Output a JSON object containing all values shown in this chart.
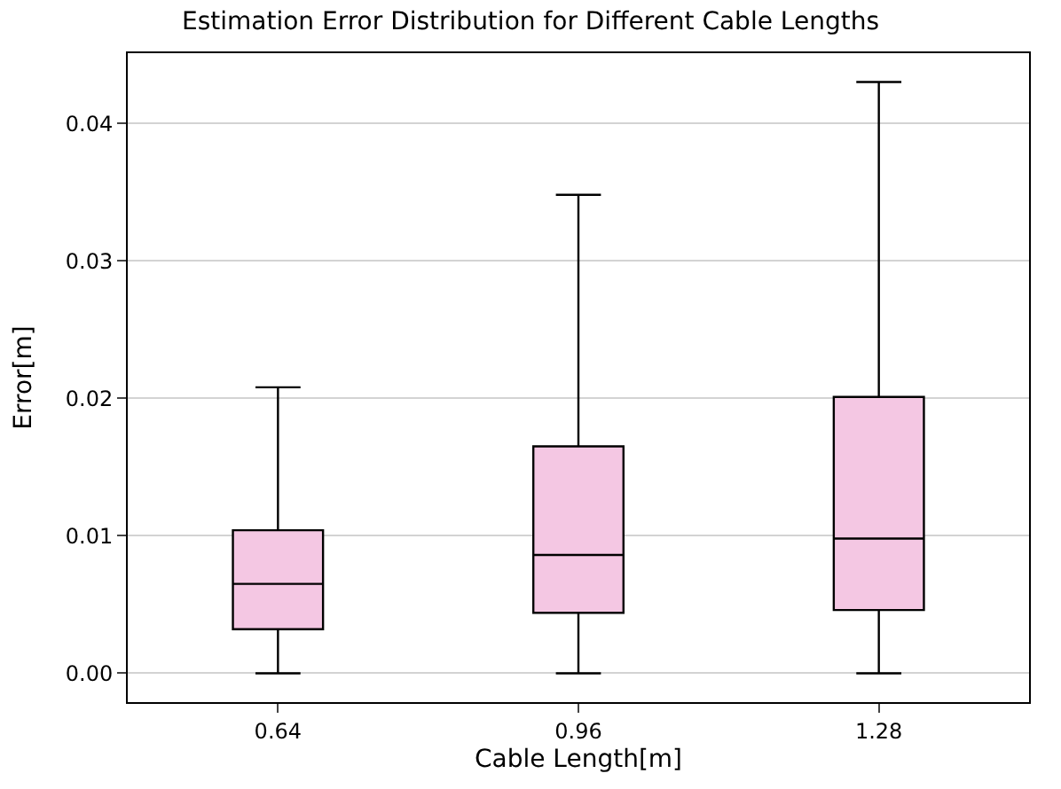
{
  "chart_data": {
    "type": "box",
    "title": "Estimation Error Distribution for Different Cable Lengths",
    "xlabel": "Cable Length[m]",
    "ylabel": "Error[m]",
    "categories": [
      "0.64",
      "0.96",
      "1.28"
    ],
    "boxes": [
      {
        "low": 0.0,
        "q1": 0.0032,
        "median": 0.0065,
        "q3": 0.0104,
        "high": 0.0208
      },
      {
        "low": 0.0,
        "q1": 0.0044,
        "median": 0.0086,
        "q3": 0.0165,
        "high": 0.0348
      },
      {
        "low": 0.0,
        "q1": 0.0046,
        "median": 0.0098,
        "q3": 0.0201,
        "high": 0.043
      }
    ],
    "color": "#f4c7e3",
    "ylim": [
      -0.0021,
      0.0451
    ],
    "yticks": [
      {
        "value": 0,
        "label": "0.00"
      },
      {
        "value": 0.01,
        "label": "0.01"
      },
      {
        "value": 0.02,
        "label": "0.02"
      },
      {
        "value": 0.03,
        "label": "0.03"
      },
      {
        "value": 0.04,
        "label": "0.04"
      }
    ],
    "grid": "y"
  }
}
